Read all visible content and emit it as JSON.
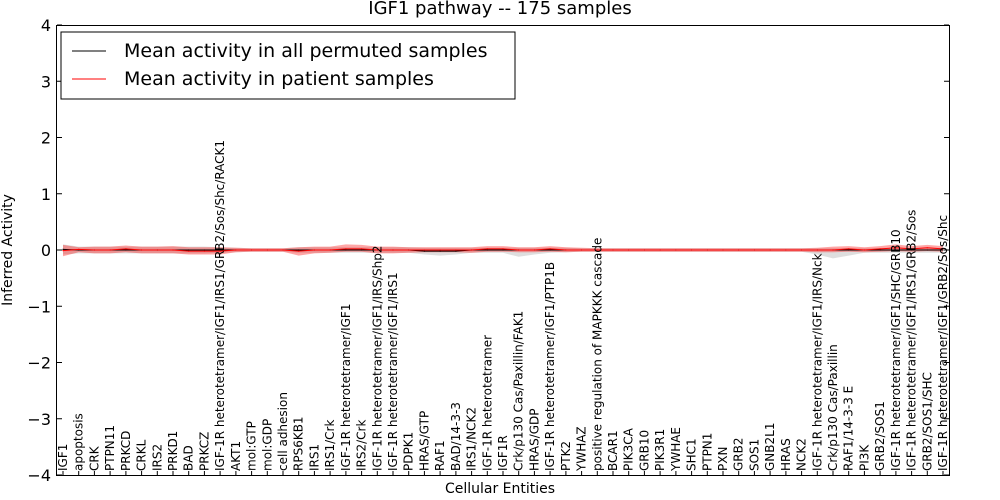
{
  "chart_data": {
    "type": "line",
    "title": "IGF1 pathway -- 175 samples",
    "xlabel": "Cellular Entities",
    "ylabel": "Inferred Activity",
    "ylim": [
      -4,
      4
    ],
    "yticks": [
      "4",
      "3",
      "2",
      "1",
      "0",
      "−1",
      "−2",
      "−3",
      "−4"
    ],
    "ytick_values": [
      4,
      3,
      2,
      1,
      0,
      -1,
      -2,
      -3,
      -4
    ],
    "grid": false,
    "legend_position": "top-left",
    "categories": [
      "IGF1",
      "apoptosis",
      "CRK",
      "PTPN11",
      "PRKCD",
      "CRKL",
      "IRS2",
      "PRKD1",
      "BAD",
      "PRKCZ",
      "IGF-1R heterotetramer/IGF1/IRS1/GRB2/Sos/Shc/RACK1",
      "AKT1",
      "mol:GTP",
      "mol:GDP",
      "cell adhesion",
      "RPS6KB1",
      "IRS1",
      "IRS1/Crk",
      "IGF-1R heterotetramer/IGF1",
      "IRS2/Crk",
      "IGF-1R heterotetramer/IGF1/IRS/Shp2",
      "IGF-1R heterotetramer/IGF1/IRS1",
      "PDPK1",
      "HRAS/GTP",
      "RAF1",
      "BAD/14-3-3",
      "IRS1/NCK2",
      "IGF-1R heterotetramer",
      "IGF1R",
      "Crk/p130 Cas/Paxillin/FAK1",
      "HRAS/GDP",
      "IGF-1R heterotetramer/IGF1/PTP1B",
      "PTK2",
      "YWHAZ",
      "positive regulation of MAPKKK cascade",
      "BCAR1",
      "PIK3CA",
      "GRB10",
      "PIK3R1",
      "YWHAE",
      "SHC1",
      "PTPN1",
      "PXN",
      "GRB2",
      "SOS1",
      "GNB2L1",
      "HRAS",
      "NCK2",
      "IGF-1R heterotetramer/IGF1/IRS/Nck",
      "Crk/p130 Cas/Paxillin",
      "RAF1/14-3-3 E",
      "PI3K",
      "GRB2/SOS1",
      "IGF-1R heterotetramer/IGF1/SHC/GRB10",
      "IGF-1R heterotetramer/IGF1/IRS1/GRB2/Sos",
      "GRB2/SOS1/SHC",
      "IGF-1R heterotetramer/IGF1/GRB2/Sos/Shc"
    ],
    "series": [
      {
        "name": "Mean activity in all permuted samples",
        "color": "#000000",
        "values": [
          0.01,
          0.0,
          0.0,
          0.0,
          0.0,
          0.0,
          0.0,
          0.0,
          0.0,
          0.0,
          0.0,
          0.0,
          0.0,
          0.0,
          0.0,
          0.0,
          0.0,
          0.0,
          0.0,
          0.0,
          0.0,
          0.0,
          0.0,
          -0.02,
          -0.02,
          -0.02,
          0.0,
          0.0,
          0.0,
          0.0,
          0.0,
          0.0,
          0.0,
          0.0,
          0.0,
          0.0,
          0.0,
          0.0,
          0.0,
          0.0,
          0.0,
          0.0,
          0.0,
          0.0,
          0.0,
          0.0,
          0.0,
          0.0,
          0.0,
          0.0,
          0.0,
          0.0,
          0.0,
          0.0,
          0.0,
          0.0,
          0.0
        ],
        "band_upper": [
          0.1,
          0.06,
          0.06,
          0.06,
          0.06,
          0.06,
          0.06,
          0.06,
          0.06,
          0.06,
          0.05,
          0.04,
          0.03,
          0.03,
          0.03,
          0.05,
          0.05,
          0.05,
          0.05,
          0.05,
          0.05,
          0.05,
          0.05,
          0.04,
          0.04,
          0.04,
          0.04,
          0.04,
          0.04,
          0.04,
          0.04,
          0.04,
          0.04,
          0.03,
          0.03,
          0.03,
          0.03,
          0.03,
          0.03,
          0.03,
          0.03,
          0.03,
          0.03,
          0.03,
          0.03,
          0.03,
          0.03,
          0.03,
          0.03,
          0.03,
          0.03,
          0.03,
          0.03,
          0.03,
          0.03,
          0.03,
          0.03
        ],
        "band_lower": [
          -0.08,
          -0.06,
          -0.06,
          -0.06,
          -0.06,
          -0.06,
          -0.06,
          -0.06,
          -0.06,
          -0.06,
          -0.05,
          -0.04,
          -0.03,
          -0.03,
          -0.03,
          -0.05,
          -0.05,
          -0.05,
          -0.05,
          -0.05,
          -0.05,
          -0.05,
          -0.05,
          -0.08,
          -0.1,
          -0.08,
          -0.05,
          -0.05,
          -0.05,
          -0.12,
          -0.08,
          -0.05,
          -0.04,
          -0.03,
          -0.03,
          -0.03,
          -0.03,
          -0.03,
          -0.03,
          -0.03,
          -0.03,
          -0.03,
          -0.03,
          -0.03,
          -0.03,
          -0.03,
          -0.03,
          -0.03,
          -0.08,
          -0.15,
          -0.1,
          -0.05,
          -0.05,
          -0.05,
          -0.05,
          -0.05,
          -0.05
        ]
      },
      {
        "name": "Mean activity in patient samples",
        "color": "#ff0000",
        "values": [
          -0.01,
          0.01,
          0.0,
          0.0,
          0.02,
          0.0,
          0.0,
          0.0,
          -0.02,
          -0.02,
          -0.02,
          0.0,
          0.0,
          0.0,
          0.0,
          -0.02,
          0.0,
          0.0,
          0.02,
          0.02,
          0.0,
          0.0,
          0.0,
          0.0,
          0.0,
          0.0,
          0.0,
          0.02,
          0.02,
          0.0,
          0.0,
          0.02,
          0.0,
          0.0,
          0.0,
          0.0,
          0.0,
          0.0,
          0.0,
          0.0,
          0.0,
          0.0,
          0.0,
          0.0,
          0.0,
          0.0,
          0.0,
          0.0,
          0.0,
          0.0,
          0.02,
          0.0,
          0.02,
          0.04,
          0.02,
          0.04,
          0.02
        ],
        "band_upper": [
          0.09,
          0.05,
          0.06,
          0.06,
          0.08,
          0.06,
          0.06,
          0.07,
          0.05,
          0.05,
          0.05,
          0.04,
          0.03,
          0.03,
          0.03,
          0.05,
          0.06,
          0.06,
          0.1,
          0.09,
          0.06,
          0.06,
          0.05,
          0.05,
          0.05,
          0.05,
          0.05,
          0.07,
          0.07,
          0.05,
          0.05,
          0.07,
          0.05,
          0.04,
          0.03,
          0.03,
          0.03,
          0.03,
          0.03,
          0.03,
          0.03,
          0.03,
          0.03,
          0.03,
          0.03,
          0.03,
          0.03,
          0.03,
          0.04,
          0.06,
          0.07,
          0.05,
          0.07,
          0.1,
          0.07,
          0.09,
          0.07
        ],
        "band_lower": [
          -0.11,
          -0.04,
          -0.06,
          -0.06,
          -0.04,
          -0.06,
          -0.06,
          -0.06,
          -0.08,
          -0.08,
          -0.08,
          -0.04,
          -0.03,
          -0.03,
          -0.03,
          -0.1,
          -0.06,
          -0.05,
          -0.03,
          -0.03,
          -0.06,
          -0.06,
          -0.05,
          -0.04,
          -0.04,
          -0.04,
          -0.05,
          -0.03,
          -0.03,
          -0.04,
          -0.04,
          -0.03,
          -0.04,
          -0.03,
          -0.03,
          -0.03,
          -0.03,
          -0.03,
          -0.03,
          -0.03,
          -0.03,
          -0.03,
          -0.03,
          -0.03,
          -0.03,
          -0.03,
          -0.03,
          -0.03,
          -0.04,
          -0.04,
          -0.03,
          -0.04,
          -0.03,
          -0.02,
          -0.03,
          -0.02,
          -0.03
        ]
      }
    ]
  }
}
